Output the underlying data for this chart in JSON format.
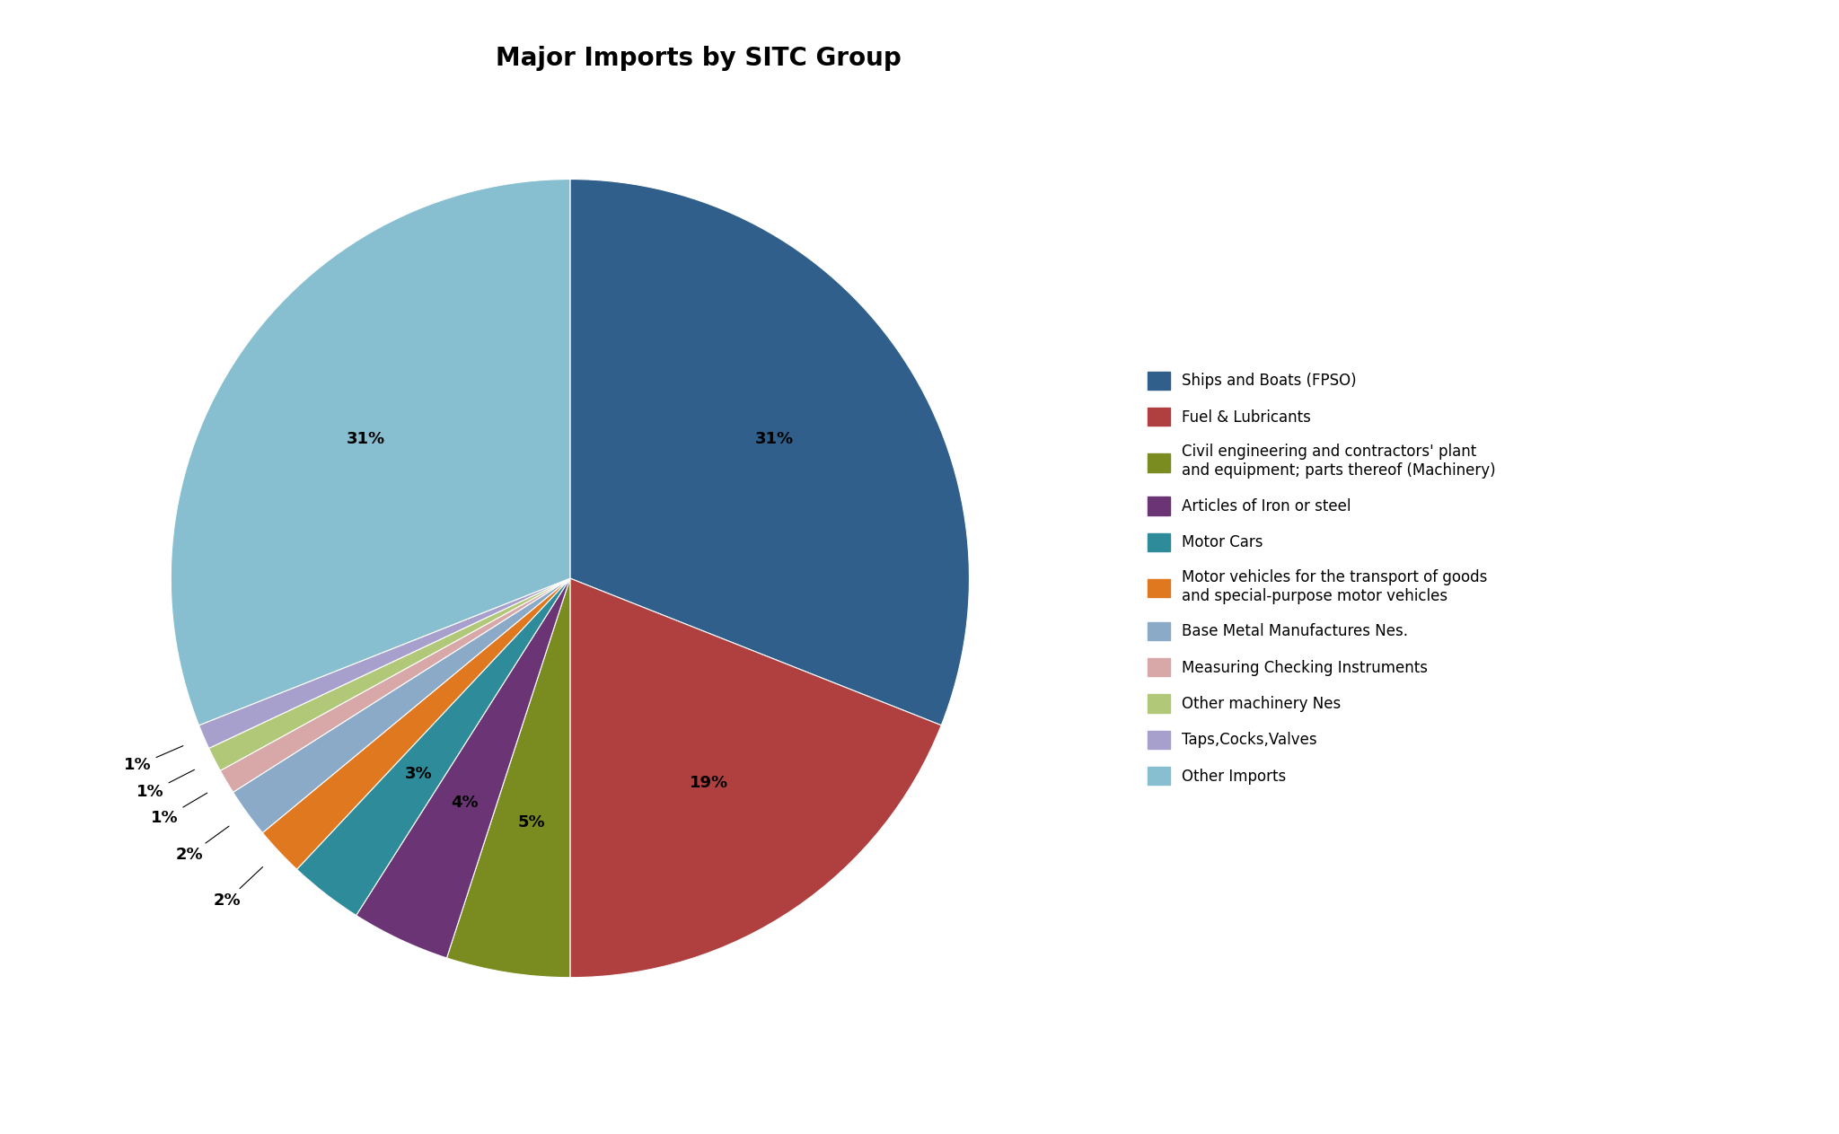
{
  "title": "Major Imports by SITC Group",
  "legend_labels": [
    "Ships and Boats (FPSO)",
    "Fuel & Lubricants",
    "Civil engineering and contractors' plant\nand equipment; parts thereof (Machinery)",
    "Articles of Iron or steel",
    "Motor Cars",
    "Motor vehicles for the transport of goods\nand special-purpose motor vehicles",
    "Base Metal Manufactures Nes.",
    "Measuring Checking Instruments",
    "Other machinery Nes",
    "Taps,Cocks,Valves",
    "Other Imports"
  ],
  "values": [
    31,
    19,
    5,
    4,
    3,
    2,
    2,
    1,
    1,
    1,
    31
  ],
  "colors": [
    "#2F5F8A",
    "#B04040",
    "#7A8B20",
    "#6B3575",
    "#2E8B9A",
    "#E07820",
    "#8AAAC8",
    "#D8A8A8",
    "#B0C878",
    "#A8A0CC",
    "#87BFD0"
  ],
  "pct_labels": [
    "31%",
    "19%",
    "5%",
    "4%",
    "3%",
    "2%",
    "2%",
    "1%",
    "1%",
    "1%",
    "31%"
  ],
  "title_fontsize": 20,
  "label_fontsize": 13,
  "legend_fontsize": 12,
  "background_color": "#FFFFFF"
}
